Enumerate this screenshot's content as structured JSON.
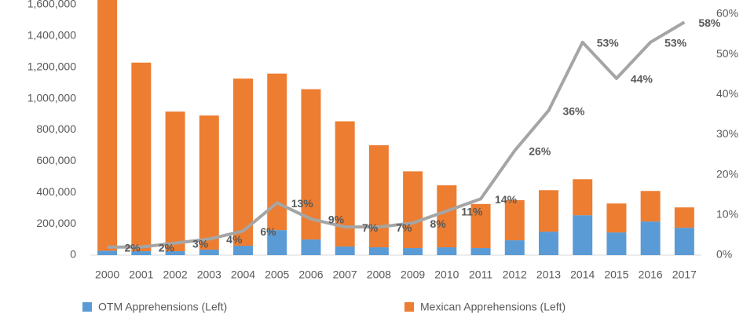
{
  "chart_data": {
    "type": "bar-line",
    "categories": [
      "2000",
      "2001",
      "2002",
      "2003",
      "2004",
      "2005",
      "2006",
      "2007",
      "2008",
      "2009",
      "2010",
      "2011",
      "2012",
      "2013",
      "2014",
      "2015",
      "2016",
      "2017"
    ],
    "series": [
      {
        "name": "OTM Apprehensions (Left)",
        "color": "#5b9bd5",
        "stack": true,
        "values": [
          28000,
          25000,
          25000,
          35000,
          60000,
          160000,
          100000,
          55000,
          50000,
          45000,
          50000,
          45000,
          95000,
          150000,
          255000,
          145000,
          215000,
          175000
        ]
      },
      {
        "name": "Mexican Apprehensions (Left)",
        "color": "#ed7d31",
        "stack": true,
        "values": [
          1636000,
          1205000,
          892000,
          857000,
          1068000,
          1000000,
          960000,
          800000,
          652000,
          490000,
          396000,
          282000,
          256000,
          265000,
          230000,
          185000,
          195000,
          130000
        ]
      },
      {
        "axis": "y2",
        "color": "#a5a5a5",
        "line": true,
        "values": [
          2,
          2,
          3,
          4,
          6,
          13,
          9,
          7,
          7,
          8,
          11,
          14,
          26,
          36,
          53,
          44,
          53,
          58
        ],
        "value_labels": [
          "2%",
          "2%",
          "3%",
          "4%",
          "6%",
          "13%",
          "9%",
          "7%",
          "7%",
          "8%",
          "11%",
          "14%",
          "26%",
          "36%",
          "53%",
          "44%",
          "53%",
          "58%"
        ]
      }
    ],
    "ylim": [
      0,
      1600000
    ],
    "yticks": [
      0,
      {
        "value": 200000,
        "label": "200,000"
      },
      {
        "value": 400000,
        "label": "400,000"
      },
      {
        "value": 600000,
        "label": "600,000"
      },
      {
        "value": 800000,
        "label": "800,000"
      },
      {
        "value": 1000000,
        "label": "1,000,000"
      },
      {
        "value": 1200000,
        "label": "1,200,000"
      },
      {
        "value": 1400000,
        "label": "1,400,000"
      },
      {
        "value": 1600000,
        "label": "1,600,000"
      }
    ],
    "y2lim": [
      0,
      62.35
    ],
    "y2ticks": [
      {
        "value": 0,
        "label": "0%"
      },
      {
        "value": 10,
        "label": "10%"
      },
      {
        "value": 20,
        "label": "20%"
      },
      {
        "value": 30,
        "label": "30%"
      },
      {
        "value": 40,
        "label": "40%"
      },
      {
        "value": 50,
        "label": "50%"
      },
      {
        "value": 60,
        "label": "60%"
      }
    ]
  }
}
